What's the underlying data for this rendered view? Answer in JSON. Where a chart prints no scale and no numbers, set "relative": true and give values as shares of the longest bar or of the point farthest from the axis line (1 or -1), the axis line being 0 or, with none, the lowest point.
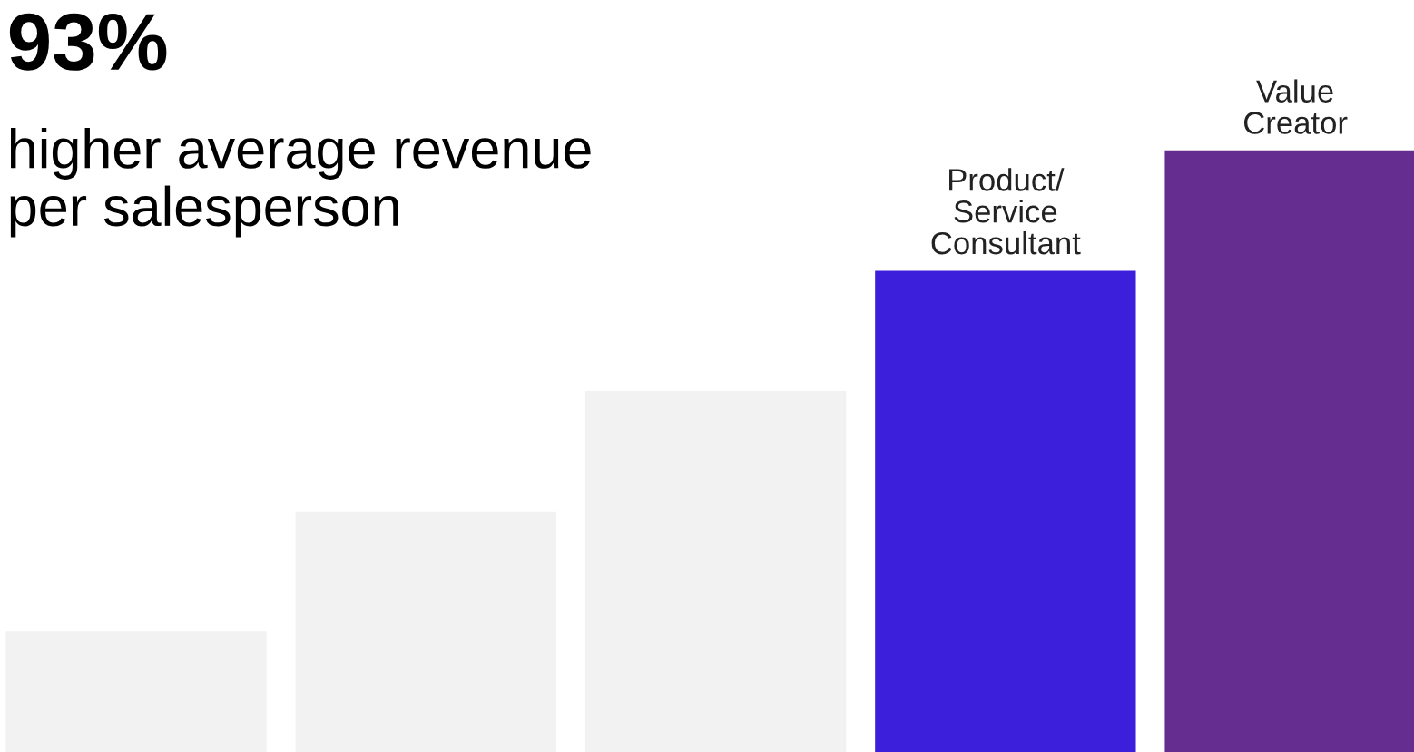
{
  "chart_data": {
    "type": "bar",
    "title": "93%",
    "subtitle": "higher average revenue\nper salesperson",
    "relative": true,
    "categories": [
      null,
      null,
      null,
      "Product/\nService\nConsultant",
      "Value\nCreator"
    ],
    "values": [
      0.2,
      0.4,
      0.6,
      0.8,
      1.0
    ],
    "colors": [
      "#f2f2f2",
      "#f2f2f2",
      "#f2f2f2",
      "#3b1fdb",
      "#652d90"
    ]
  }
}
